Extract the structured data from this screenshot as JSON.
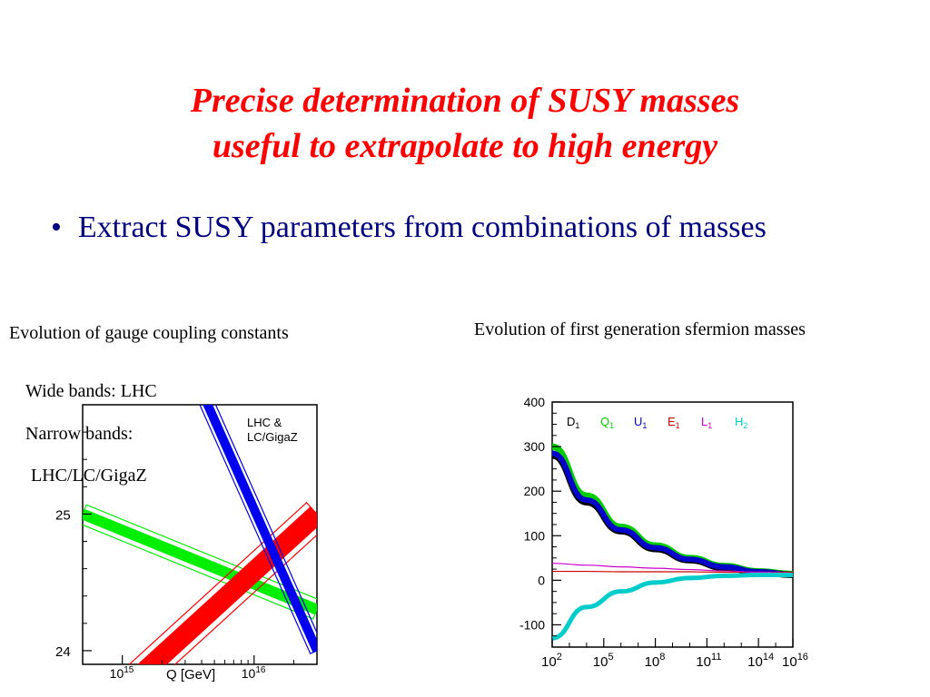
{
  "title": {
    "line1": "Precise determination of SUSY masses",
    "line2": "useful to extrapolate to high energy"
  },
  "bullet": "Extract SUSY parameters from combinations of masses",
  "left_figure": {
    "caption": "Evolution of gauge coupling constants",
    "notes": [
      "Wide bands:  LHC",
      "Narrow bands:",
      "LHC/LC/GigaZ"
    ],
    "legend_lines": [
      "LHC  &",
      "LC/GigaZ"
    ],
    "colors": {
      "band1": "#00ee00",
      "band2": "#ff0000",
      "band3": "#0000ee"
    }
  },
  "right_figure": {
    "caption": "Evolution of first generation sfermion masses",
    "legend": [
      {
        "label": "D",
        "sub": "1",
        "color": "#000000"
      },
      {
        "label": "Q",
        "sub": "1",
        "color": "#00cc00"
      },
      {
        "label": "U",
        "sub": "1",
        "color": "#0000cc"
      },
      {
        "label": "E",
        "sub": "1",
        "color": "#cc0000"
      },
      {
        "label": "L",
        "sub": "1",
        "color": "#cc00cc"
      },
      {
        "label": "H",
        "sub": "2",
        "color": "#00cccc"
      }
    ]
  },
  "chart_data": [
    {
      "type": "line",
      "title": "",
      "xlabel": "Q [GeV]",
      "ylabel": "",
      "x_scale": "log",
      "xlim": [
        500000000000000,
        30000000000000000
      ],
      "ylim": [
        23.9,
        25.8
      ],
      "x_ticks": [
        {
          "base": "10",
          "exp": "15",
          "value": 1000000000000000
        },
        {
          "base": "10",
          "exp": "16",
          "value": 10000000000000000
        }
      ],
      "y_ticks": [
        {
          "label": "24",
          "value": 24
        },
        {
          "label": "25",
          "value": 25
        }
      ],
      "series": [
        {
          "band": "wide",
          "color": "#00ee00",
          "x": [
            500000000000000,
            30000000000000000
          ],
          "y": [
            25.0,
            24.3
          ]
        },
        {
          "band": "narrow",
          "color": "#00ee00",
          "x": [
            500000000000000,
            30000000000000000
          ],
          "y": [
            25.0,
            24.3
          ]
        },
        {
          "band": "wide",
          "color": "#ff0000",
          "x": [
            1000000000000000,
            30000000000000000
          ],
          "y": [
            23.7,
            25.0
          ]
        },
        {
          "band": "narrow",
          "color": "#ff0000",
          "x": [
            1000000000000000,
            30000000000000000
          ],
          "y": [
            23.7,
            25.0
          ]
        },
        {
          "band": "wide",
          "color": "#0000ee",
          "x": [
            4000000000000000,
            30000000000000000
          ],
          "y": [
            25.9,
            24.0
          ]
        },
        {
          "band": "narrow",
          "color": "#0000ee",
          "x": [
            4000000000000000,
            30000000000000000
          ],
          "y": [
            25.9,
            24.0
          ]
        }
      ]
    },
    {
      "type": "line",
      "title": "",
      "xlabel": "",
      "ylabel": "",
      "x_scale": "log",
      "xlim": [
        2,
        16
      ],
      "ylim": [
        -150,
        400
      ],
      "x_ticks": [
        {
          "base": "10",
          "exp": "2"
        },
        {
          "base": "10",
          "exp": "5"
        },
        {
          "base": "10",
          "exp": "8"
        },
        {
          "base": "10",
          "exp": "11"
        },
        {
          "base": "10",
          "exp": "14"
        },
        {
          "base": "10",
          "exp": "16"
        }
      ],
      "y_ticks": [
        "400",
        "300",
        "200",
        "100",
        "0",
        "-100"
      ],
      "series": [
        {
          "name": "D1",
          "color": "#000000",
          "x": [
            2,
            4,
            6,
            8,
            10,
            12,
            14,
            16
          ],
          "y": [
            280,
            175,
            110,
            70,
            45,
            28,
            18,
            12
          ]
        },
        {
          "name": "Q1",
          "color": "#00cc00",
          "x": [
            2,
            4,
            6,
            8,
            10,
            12,
            14,
            16
          ],
          "y": [
            300,
            190,
            120,
            78,
            50,
            32,
            20,
            14
          ]
        },
        {
          "name": "U1",
          "color": "#0000cc",
          "x": [
            2,
            4,
            6,
            8,
            10,
            12,
            14,
            16
          ],
          "y": [
            285,
            180,
            113,
            73,
            47,
            30,
            19,
            13
          ]
        },
        {
          "name": "E1",
          "color": "#cc0000",
          "x": [
            2,
            4,
            6,
            8,
            10,
            12,
            14,
            16
          ],
          "y": [
            20,
            20,
            19,
            19,
            19,
            18,
            18,
            18
          ]
        },
        {
          "name": "L1",
          "color": "#cc00cc",
          "x": [
            2,
            4,
            6,
            8,
            10,
            12,
            14,
            16
          ],
          "y": [
            38,
            34,
            30,
            27,
            24,
            21,
            18,
            16
          ]
        },
        {
          "name": "H2",
          "color": "#00cccc",
          "x": [
            2,
            4,
            6,
            8,
            10,
            12,
            14,
            16
          ],
          "y": [
            -130,
            -60,
            -25,
            -5,
            5,
            10,
            12,
            12
          ]
        }
      ]
    }
  ]
}
